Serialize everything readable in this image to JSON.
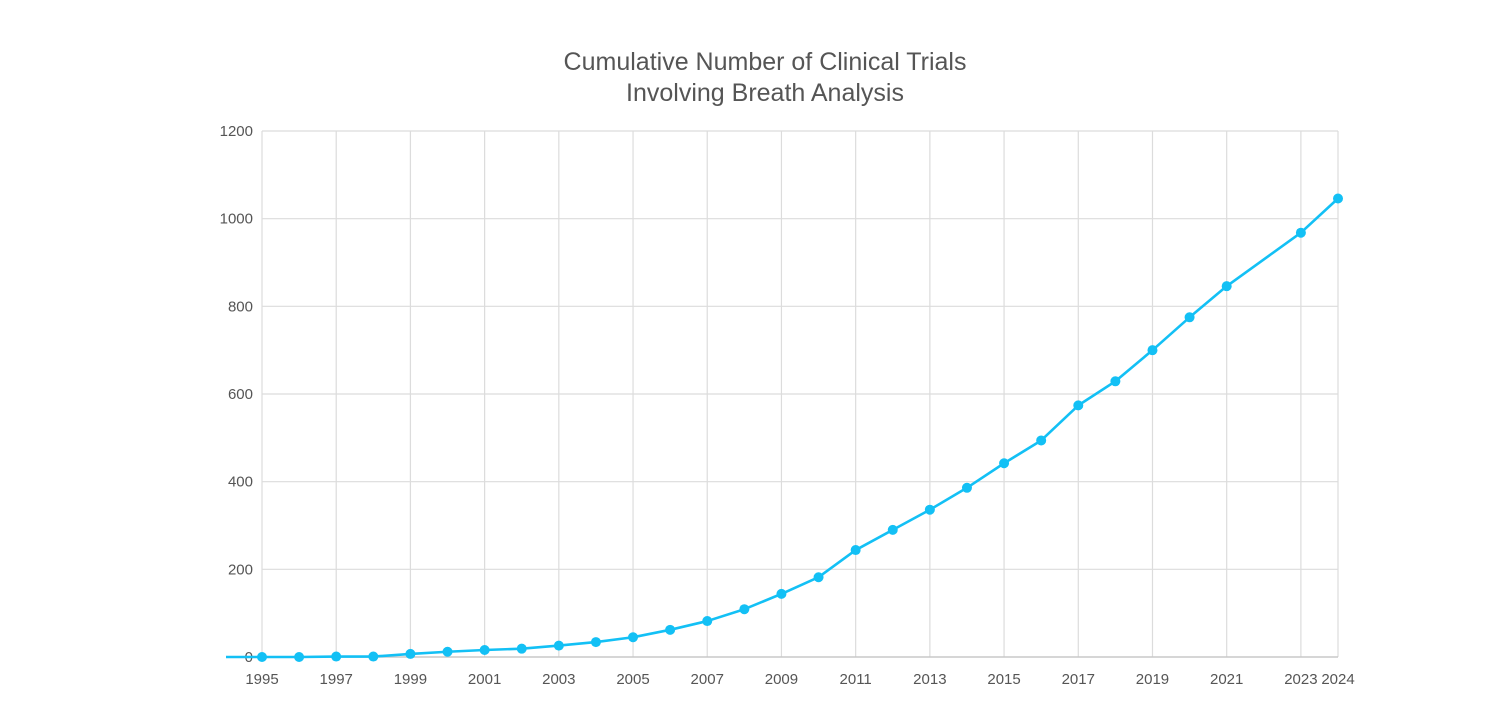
{
  "chart_data": {
    "type": "line",
    "title": [
      "Cumulative Number of Clinical Trials",
      "Involving Breath Analysis"
    ],
    "xlabel": "",
    "ylabel": "",
    "xlim": [
      1995,
      2024
    ],
    "ylim": [
      0,
      1200
    ],
    "yticks": [
      0,
      200,
      400,
      600,
      800,
      1000,
      1200
    ],
    "xticks": [
      1995,
      1997,
      1999,
      2001,
      2003,
      2005,
      2007,
      2009,
      2011,
      2013,
      2015,
      2017,
      2019,
      2021,
      2023,
      2024
    ],
    "grid": true,
    "legend": "none",
    "color": "#13c0f5",
    "series": [
      {
        "x": [
          1995,
          1996,
          1997,
          1998,
          1999,
          2000,
          2001,
          2002,
          2003,
          2004,
          2005,
          2006,
          2007,
          2008,
          2009,
          2010,
          2011,
          2012,
          2013,
          2014,
          2015,
          2016,
          2017,
          2018,
          2019,
          2020,
          2021,
          2023,
          2024
        ],
        "values": [
          0,
          0,
          1,
          1,
          7,
          12,
          16,
          19,
          26,
          34,
          45,
          62,
          82,
          109,
          144,
          182,
          244,
          290,
          336,
          386,
          442,
          494,
          574,
          629,
          700,
          775,
          846,
          968,
          1046
        ]
      }
    ]
  }
}
